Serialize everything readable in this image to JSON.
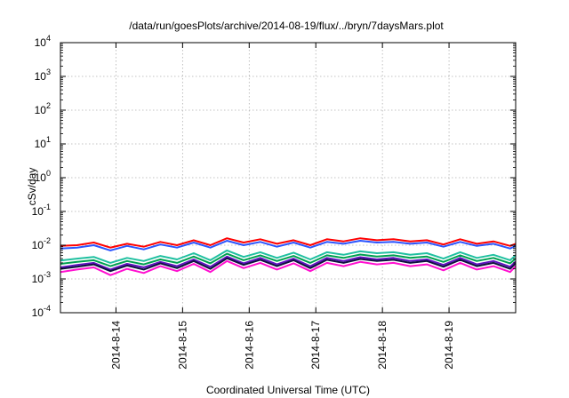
{
  "chart_data": {
    "type": "line",
    "title": "/data/run/goesPlots/archive/2014-08-19/flux/../bryn/7daysMars.plot",
    "xlabel": "Coordinated Universal Time (UTC)",
    "ylabel": "cSv/day",
    "yscale": "log",
    "ylim": [
      0.0001,
      10000
    ],
    "y_ticks": [
      {
        "value": 0.0001,
        "base": "10",
        "exp": "-4"
      },
      {
        "value": 0.001,
        "base": "10",
        "exp": "-3"
      },
      {
        "value": 0.01,
        "base": "10",
        "exp": "-2"
      },
      {
        "value": 0.1,
        "base": "10",
        "exp": "-1"
      },
      {
        "value": 1,
        "base": "10",
        "exp": "0"
      },
      {
        "value": 10,
        "base": "10",
        "exp": "1"
      },
      {
        "value": 100,
        "base": "10",
        "exp": "2"
      },
      {
        "value": 1000,
        "base": "10",
        "exp": "3"
      },
      {
        "value": 10000,
        "base": "10",
        "exp": "4"
      }
    ],
    "xlim": [
      "2014-08-13T04:00",
      "2014-08-20T00:00"
    ],
    "x_ticks": [
      {
        "date": "2014-08-14T00:00",
        "label": "2014-8-14"
      },
      {
        "date": "2014-08-15T00:00",
        "label": "2014-8-15"
      },
      {
        "date": "2014-08-16T00:00",
        "label": "2014-8-16"
      },
      {
        "date": "2014-08-17T00:00",
        "label": "2014-8-17"
      },
      {
        "date": "2014-08-18T00:00",
        "label": "2014-8-18"
      },
      {
        "date": "2014-08-19T00:00",
        "label": "2014-8-19"
      }
    ],
    "grid": true,
    "x": [
      "2014-08-13T04:00",
      "2014-08-13T10:00",
      "2014-08-13T16:00",
      "2014-08-13T22:00",
      "2014-08-14T04:00",
      "2014-08-14T10:00",
      "2014-08-14T16:00",
      "2014-08-14T22:00",
      "2014-08-15T04:00",
      "2014-08-15T10:00",
      "2014-08-15T16:00",
      "2014-08-15T22:00",
      "2014-08-16T04:00",
      "2014-08-16T10:00",
      "2014-08-16T16:00",
      "2014-08-16T22:00",
      "2014-08-17T04:00",
      "2014-08-17T10:00",
      "2014-08-17T16:00",
      "2014-08-17T22:00",
      "2014-08-18T04:00",
      "2014-08-18T10:00",
      "2014-08-18T16:00",
      "2014-08-18T22:00",
      "2014-08-19T04:00",
      "2014-08-19T10:00",
      "2014-08-19T16:00",
      "2014-08-19T22:00",
      "2014-08-20T00:00"
    ],
    "series": [
      {
        "color": "#ff0000",
        "values": [
          0.0095,
          0.01,
          0.012,
          0.0085,
          0.011,
          0.009,
          0.0125,
          0.01,
          0.014,
          0.01,
          0.016,
          0.012,
          0.015,
          0.011,
          0.014,
          0.01,
          0.015,
          0.013,
          0.016,
          0.014,
          0.015,
          0.013,
          0.014,
          0.0105,
          0.015,
          0.011,
          0.013,
          0.0095,
          0.011
        ]
      },
      {
        "color": "#2b55ff",
        "values": [
          0.008,
          0.0085,
          0.01,
          0.007,
          0.0095,
          0.0075,
          0.0105,
          0.0085,
          0.012,
          0.0085,
          0.0135,
          0.01,
          0.0125,
          0.009,
          0.012,
          0.0085,
          0.0125,
          0.011,
          0.0135,
          0.012,
          0.0125,
          0.011,
          0.012,
          0.009,
          0.0125,
          0.0095,
          0.011,
          0.008,
          0.0095
        ]
      },
      {
        "color": "#20c0a0",
        "values": [
          0.0035,
          0.004,
          0.0045,
          0.003,
          0.0042,
          0.0034,
          0.0048,
          0.0038,
          0.0058,
          0.0036,
          0.007,
          0.0045,
          0.0062,
          0.0042,
          0.006,
          0.0038,
          0.0062,
          0.0052,
          0.0066,
          0.0058,
          0.0062,
          0.0052,
          0.0058,
          0.004,
          0.0062,
          0.0042,
          0.0052,
          0.0036,
          0.005
        ]
      },
      {
        "color": "#00a050",
        "values": [
          0.0028,
          0.0032,
          0.0036,
          0.0024,
          0.0034,
          0.0027,
          0.0038,
          0.003,
          0.0046,
          0.0029,
          0.0056,
          0.0036,
          0.005,
          0.0034,
          0.0048,
          0.003,
          0.005,
          0.0042,
          0.0053,
          0.0046,
          0.005,
          0.0042,
          0.0046,
          0.0032,
          0.005,
          0.0034,
          0.0042,
          0.0029,
          0.004
        ]
      },
      {
        "color": "#6010c0",
        "values": [
          0.0022,
          0.0026,
          0.003,
          0.0019,
          0.0028,
          0.0022,
          0.0032,
          0.0024,
          0.0038,
          0.0023,
          0.0046,
          0.0029,
          0.0042,
          0.0027,
          0.004,
          0.0024,
          0.0042,
          0.0034,
          0.0044,
          0.0038,
          0.0042,
          0.0034,
          0.0038,
          0.0026,
          0.0042,
          0.0027,
          0.0034,
          0.0023,
          0.0033
        ]
      },
      {
        "color": "#101040",
        "values": [
          0.002,
          0.0023,
          0.0027,
          0.0017,
          0.0025,
          0.0019,
          0.0029,
          0.0021,
          0.0034,
          0.002,
          0.0041,
          0.0026,
          0.0037,
          0.0024,
          0.0036,
          0.0021,
          0.0037,
          0.003,
          0.0039,
          0.0034,
          0.0037,
          0.003,
          0.0034,
          0.0023,
          0.0037,
          0.0024,
          0.003,
          0.002,
          0.0029
        ]
      },
      {
        "color": "#ff10d0",
        "values": [
          0.0016,
          0.0019,
          0.0022,
          0.0013,
          0.002,
          0.0015,
          0.0024,
          0.0017,
          0.0028,
          0.0016,
          0.0034,
          0.0021,
          0.003,
          0.0019,
          0.0029,
          0.0017,
          0.003,
          0.0024,
          0.0032,
          0.0027,
          0.003,
          0.0024,
          0.0027,
          0.0018,
          0.003,
          0.0019,
          0.0024,
          0.0016,
          0.0024
        ]
      }
    ]
  }
}
